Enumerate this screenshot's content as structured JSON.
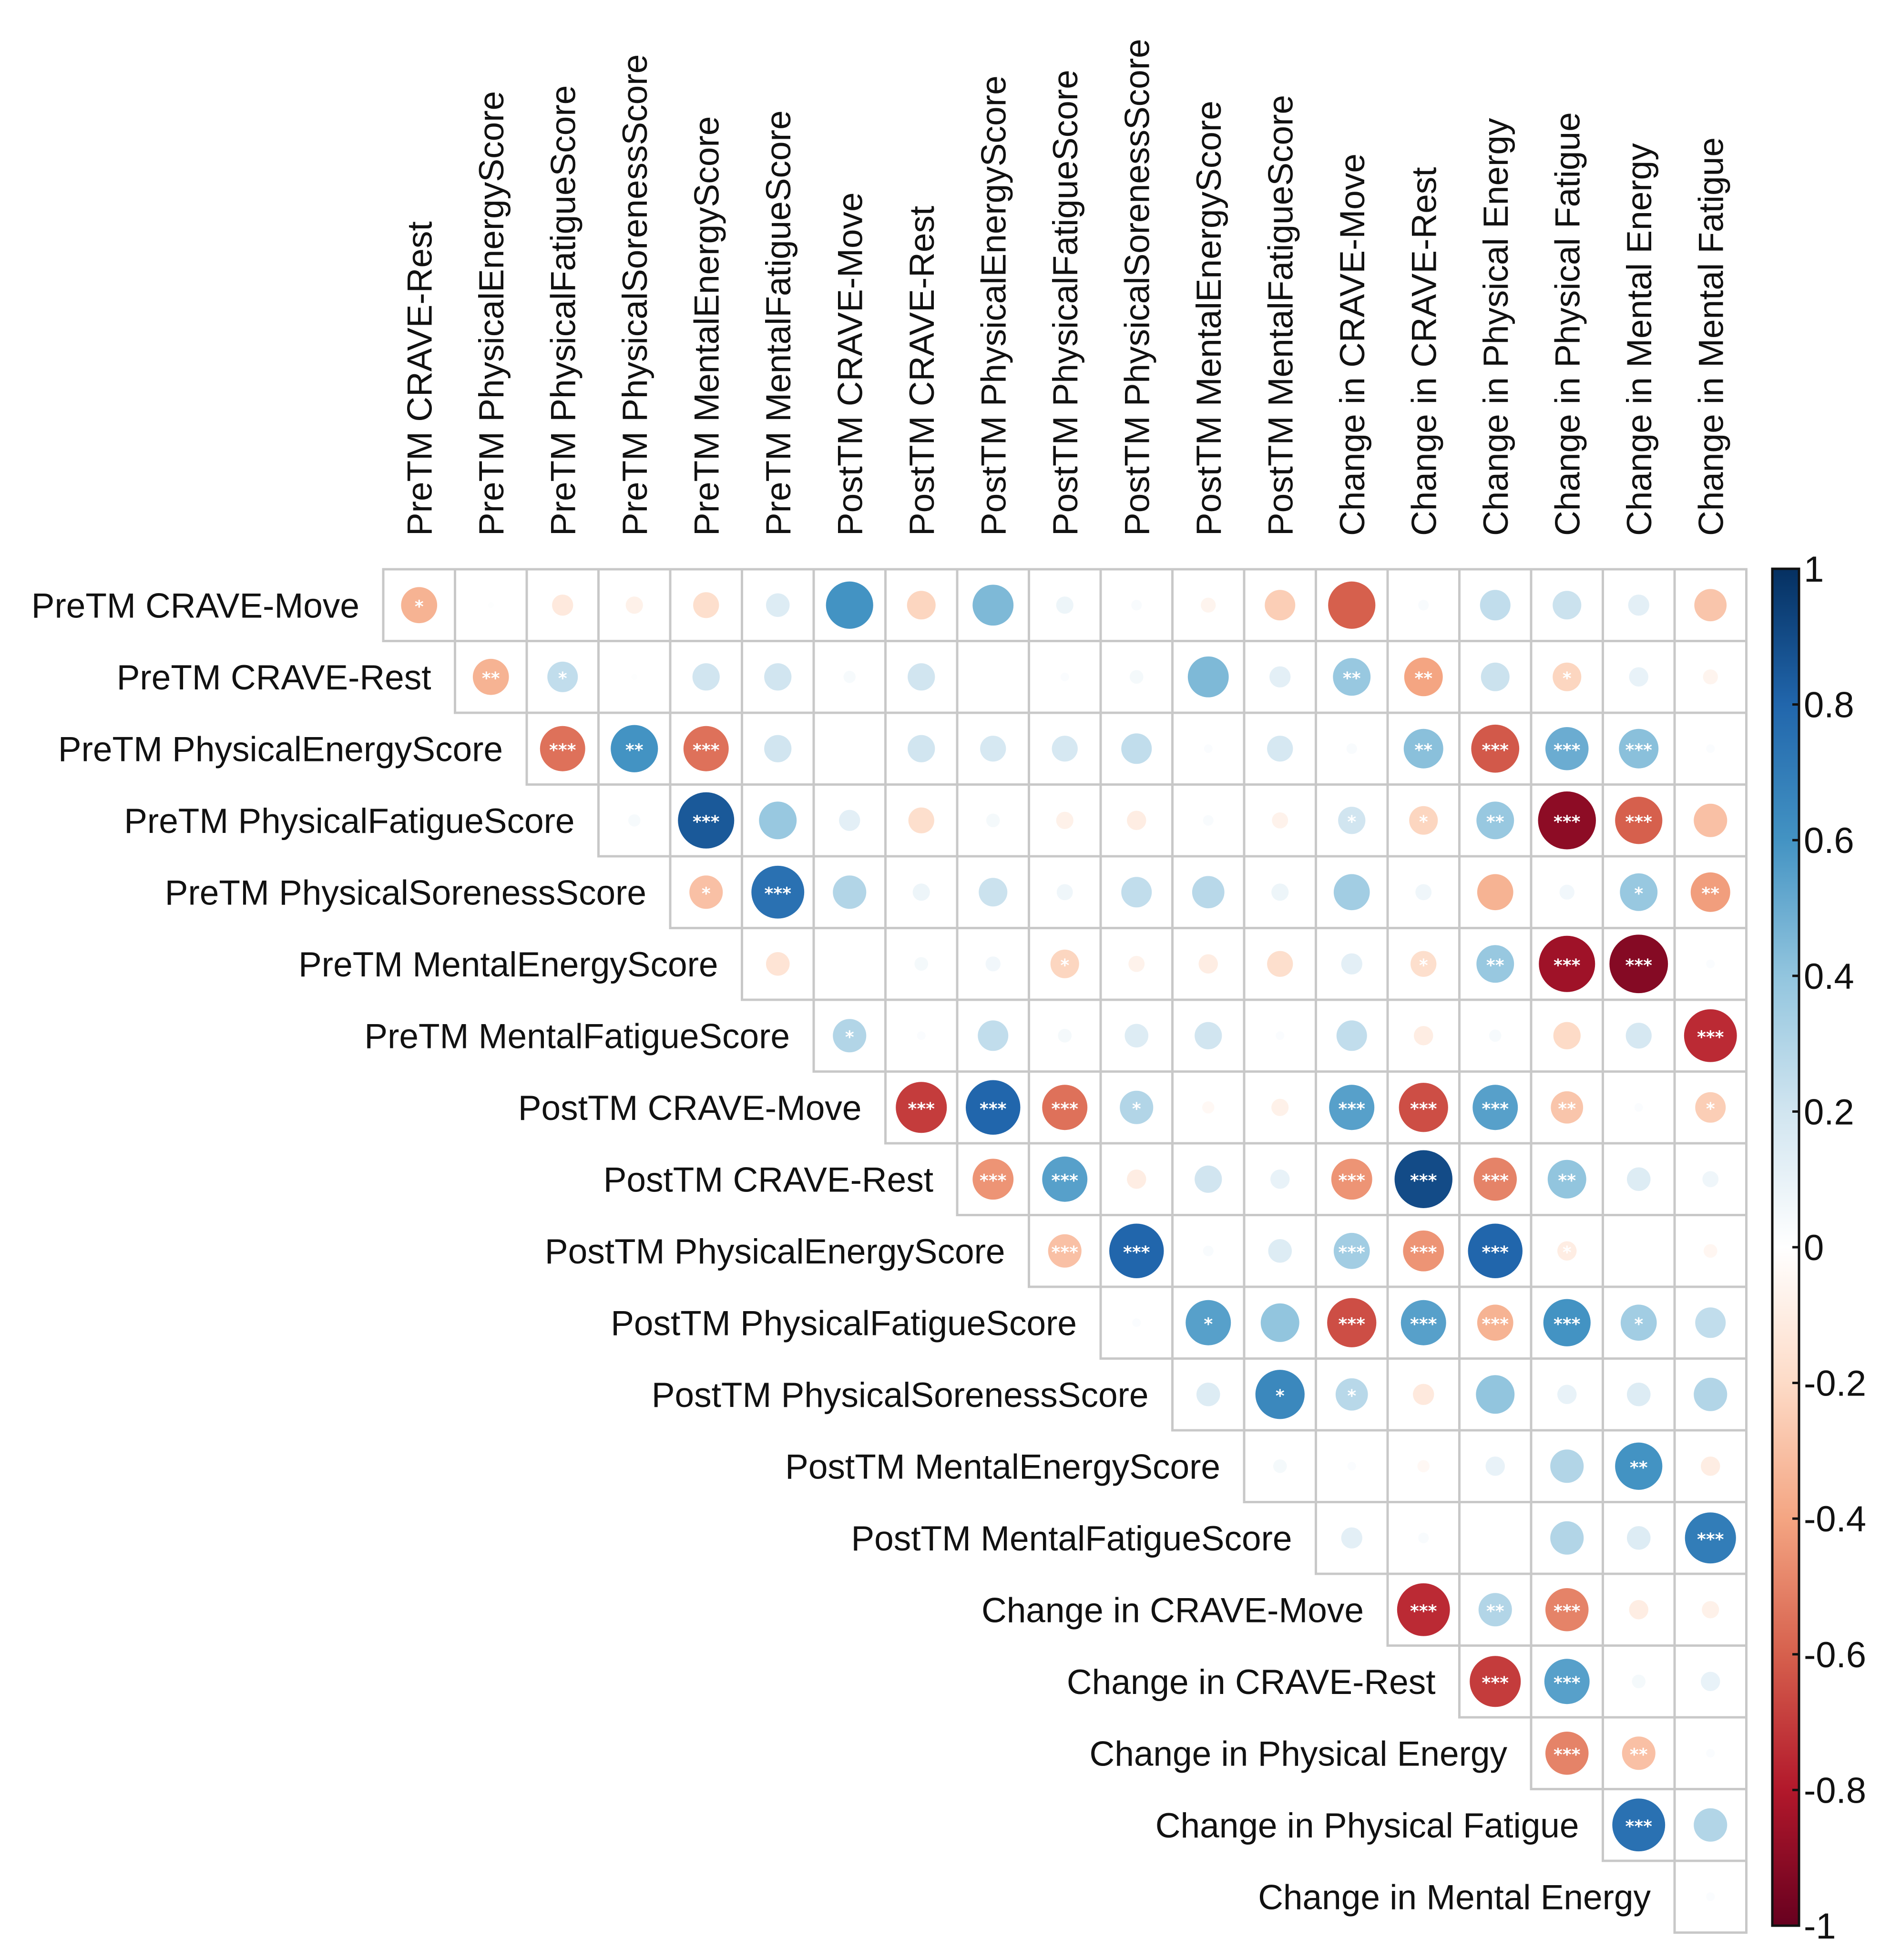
{
  "chart_data": {
    "type": "heatmap",
    "title": "",
    "variables": [
      "PreTM CRAVE-Move",
      "PreTM CRAVE-Rest",
      "PreTM PhysicalEnergyScore",
      "PreTM PhysicalFatigueScore",
      "PreTM PhysicalSorenessScore",
      "PreTM MentalEnergyScore",
      "PreTM MentalFatigueScore",
      "PostTM CRAVE-Move",
      "PostTM CRAVE-Rest",
      "PostTM PhysicalEnergyScore",
      "PostTM PhysicalFatigueScore",
      "PostTM PhysicalSorenessScore",
      "PostTM MentalEnergyScore",
      "PostTM MentalFatigueScore",
      "Change in CRAVE-Move",
      "Change in CRAVE-Rest",
      "Change in Physical Energy",
      "Change in Physical Fatigue",
      "Change in Mental Energy",
      "Change in Mental Fatigue"
    ],
    "row_labels": [
      "PreTM CRAVE-Move",
      "PreTM CRAVE-Rest",
      "PreTM PhysicalEnergyScore",
      "PreTM PhysicalFatigueScore",
      "PreTM PhysicalSorenessScore",
      "PreTM MentalEnergyScore",
      "PreTM MentalFatigueScore",
      "PostTM CRAVE-Move",
      "PostTM CRAVE-Rest",
      "PostTM PhysicalEnergyScore",
      "PostTM PhysicalFatigueScore",
      "PostTM PhysicalSorenessScore",
      "PostTM MentalEnergyScore",
      "PostTM MentalFatigueScore",
      "Change in CRAVE-Move",
      "Change in CRAVE-Rest",
      "Change in Physical Energy",
      "Change in Physical Fatigue",
      "Change in Mental Energy"
    ],
    "column_labels": [
      "PreTM CRAVE-Rest",
      "PreTM PhysicalEnergyScore",
      "PreTM PhysicalFatigueScore",
      "PreTM PhysicalSorenessScore",
      "PreTM MentalEnergyScore",
      "PreTM MentalFatigueScore",
      "PostTM CRAVE-Move",
      "PostTM CRAVE-Rest",
      "PostTM PhysicalEnergyScore",
      "PostTM PhysicalFatigueScore",
      "PostTM PhysicalSorenessScore",
      "PostTM MentalEnergyScore",
      "PostTM MentalFatigueScore",
      "Change in CRAVE-Move",
      "Change in CRAVE-Rest",
      "Change in Physical Energy",
      "Change in Physical Fatigue",
      "Change in Mental Energy",
      "Change in Mental Fatigue"
    ],
    "correlations": [
      [
        -0.35,
        0.01,
        -0.12,
        -0.08,
        -0.18,
        0.15,
        0.6,
        -0.22,
        0.45,
        0.08,
        0.03,
        -0.06,
        -0.25,
        -0.6,
        0.03,
        0.25,
        0.22,
        0.12,
        -0.28
      ],
      [
        null,
        -0.35,
        0.25,
        0.01,
        0.2,
        0.2,
        0.04,
        0.2,
        0.0,
        0.02,
        0.05,
        0.45,
        0.12,
        0.38,
        -0.4,
        0.22,
        -0.22,
        0.1,
        -0.06
      ],
      [
        null,
        null,
        -0.55,
        0.6,
        -0.55,
        0.2,
        0.0,
        0.2,
        0.18,
        0.18,
        0.25,
        0.02,
        0.18,
        0.03,
        0.42,
        -0.62,
        0.5,
        0.42,
        0.02
      ],
      [
        null,
        null,
        null,
        0.04,
        0.85,
        0.38,
        0.12,
        -0.18,
        0.05,
        -0.08,
        -0.1,
        0.03,
        -0.07,
        0.2,
        -0.22,
        0.38,
        -0.9,
        -0.6,
        -0.3
      ],
      [
        null,
        null,
        null,
        null,
        -0.3,
        0.75,
        0.3,
        0.08,
        0.22,
        0.07,
        0.25,
        0.28,
        0.08,
        0.35,
        0.07,
        -0.35,
        0.06,
        0.38,
        -0.42
      ],
      [
        null,
        null,
        null,
        null,
        null,
        -0.15,
        0.0,
        0.05,
        0.06,
        -0.22,
        -0.07,
        -0.1,
        -0.18,
        0.12,
        -0.18,
        0.38,
        -0.85,
        -0.92,
        0.02
      ],
      [
        null,
        null,
        null,
        null,
        null,
        null,
        0.3,
        0.02,
        0.25,
        0.05,
        0.15,
        0.2,
        0.02,
        0.25,
        -0.1,
        0.04,
        -0.2,
        0.18,
        -0.75
      ],
      [
        null,
        null,
        null,
        null,
        null,
        null,
        null,
        -0.7,
        0.8,
        -0.55,
        0.3,
        -0.04,
        -0.08,
        0.55,
        -0.65,
        0.55,
        -0.28,
        0.02,
        -0.25
      ],
      [
        null,
        null,
        null,
        null,
        null,
        null,
        null,
        null,
        -0.45,
        0.55,
        -0.1,
        0.2,
        0.1,
        -0.45,
        0.9,
        -0.5,
        0.4,
        0.15,
        0.07
      ],
      [
        null,
        null,
        null,
        null,
        null,
        null,
        null,
        null,
        null,
        -0.3,
        0.8,
        0.03,
        0.15,
        0.35,
        -0.45,
        0.8,
        -0.1,
        0.0,
        -0.05
      ],
      [
        null,
        null,
        null,
        null,
        null,
        null,
        null,
        null,
        null,
        null,
        0.02,
        0.55,
        0.4,
        -0.65,
        0.55,
        -0.35,
        0.6,
        0.35,
        0.25
      ],
      [
        null,
        null,
        null,
        null,
        null,
        null,
        null,
        null,
        null,
        null,
        null,
        0.15,
        0.65,
        0.28,
        -0.12,
        0.4,
        0.1,
        0.15,
        0.3
      ],
      [
        null,
        null,
        null,
        null,
        null,
        null,
        null,
        null,
        null,
        null,
        null,
        null,
        0.05,
        0.02,
        -0.04,
        0.1,
        0.3,
        0.6,
        -0.1
      ],
      [
        null,
        null,
        null,
        null,
        null,
        null,
        null,
        null,
        null,
        null,
        null,
        null,
        null,
        0.12,
        0.03,
        0.0,
        0.3,
        0.15,
        0.7
      ],
      [
        null,
        null,
        null,
        null,
        null,
        null,
        null,
        null,
        null,
        null,
        null,
        null,
        null,
        null,
        -0.75,
        0.3,
        -0.5,
        -0.1,
        -0.08
      ],
      [
        null,
        null,
        null,
        null,
        null,
        null,
        null,
        null,
        null,
        null,
        null,
        null,
        null,
        null,
        null,
        -0.7,
        0.55,
        0.05,
        0.1
      ],
      [
        null,
        null,
        null,
        null,
        null,
        null,
        null,
        null,
        null,
        null,
        null,
        null,
        null,
        null,
        null,
        null,
        -0.5,
        -0.3,
        0.02
      ],
      [
        null,
        null,
        null,
        null,
        null,
        null,
        null,
        null,
        null,
        null,
        null,
        null,
        null,
        null,
        null,
        null,
        null,
        0.75,
        0.3
      ],
      [
        null,
        null,
        null,
        null,
        null,
        null,
        null,
        null,
        null,
        null,
        null,
        null,
        null,
        null,
        null,
        null,
        null,
        null,
        0.02
      ]
    ],
    "significance": [
      [
        "*",
        "",
        "",
        "",
        "",
        "",
        "",
        "",
        "",
        "",
        "",
        "",
        "",
        "",
        "",
        "",
        "",
        "",
        ""
      ],
      [
        "",
        "**",
        "*",
        "",
        "",
        "",
        "",
        "",
        "",
        "",
        "",
        "",
        "",
        "**",
        "**",
        "",
        "*",
        "",
        ""
      ],
      [
        "",
        "",
        "***",
        "**",
        "***",
        "",
        "",
        "",
        "",
        "",
        "",
        "",
        "",
        "",
        "**",
        "***",
        "***",
        "***",
        ""
      ],
      [
        "",
        "",
        "",
        "",
        "***",
        "",
        "",
        "",
        "",
        "",
        "",
        "",
        "",
        "*",
        "*",
        "**",
        "***",
        "***",
        ""
      ],
      [
        "",
        "",
        "",
        "",
        "*",
        "***",
        "",
        "",
        "",
        "",
        "",
        "",
        "",
        "",
        "",
        "",
        "",
        "*",
        "**"
      ],
      [
        "",
        "",
        "",
        "",
        "",
        "",
        "",
        "",
        "",
        "*",
        "",
        "",
        "",
        "",
        "*",
        "**",
        "***",
        "***",
        ""
      ],
      [
        "",
        "",
        "",
        "",
        "",
        "",
        "*",
        "",
        "",
        "",
        "",
        "",
        "",
        "",
        "",
        "",
        "",
        "",
        "***"
      ],
      [
        "",
        "",
        "",
        "",
        "",
        "",
        "",
        "***",
        "***",
        "***",
        "*",
        "",
        "",
        "***",
        "***",
        "***",
        "**",
        "",
        "*"
      ],
      [
        "",
        "",
        "",
        "",
        "",
        "",
        "",
        "",
        "***",
        "***",
        "",
        "",
        "",
        "***",
        "***",
        "***",
        "**",
        "",
        ""
      ],
      [
        "",
        "",
        "",
        "",
        "",
        "",
        "",
        "",
        "",
        "***",
        "***",
        "",
        "",
        "***",
        "***",
        "***",
        "*",
        "",
        ""
      ],
      [
        "",
        "",
        "",
        "",
        "",
        "",
        "",
        "",
        "",
        "",
        "",
        "*",
        "",
        "***",
        "***",
        "***",
        "***",
        "*",
        ""
      ],
      [
        "",
        "",
        "",
        "",
        "",
        "",
        "",
        "",
        "",
        "",
        "",
        "",
        "*",
        "*",
        "",
        "",
        "",
        "",
        ""
      ],
      [
        "",
        "",
        "",
        "",
        "",
        "",
        "",
        "",
        "",
        "",
        "",
        "",
        "",
        "",
        "",
        "",
        "",
        "**",
        ""
      ],
      [
        "",
        "",
        "",
        "",
        "",
        "",
        "",
        "",
        "",
        "",
        "",
        "",
        "",
        "",
        "",
        "",
        "",
        "",
        "***"
      ],
      [
        "",
        "",
        "",
        "",
        "",
        "",
        "",
        "",
        "",
        "",
        "",
        "",
        "",
        "",
        "***",
        "**",
        "***",
        "",
        ""
      ],
      [
        "",
        "",
        "",
        "",
        "",
        "",
        "",
        "",
        "",
        "",
        "",
        "",
        "",
        "",
        "",
        "***",
        "***",
        "",
        ""
      ],
      [
        "",
        "",
        "",
        "",
        "",
        "",
        "",
        "",
        "",
        "",
        "",
        "",
        "",
        "",
        "",
        "",
        "***",
        "**",
        ""
      ],
      [
        "",
        "",
        "",
        "",
        "",
        "",
        "",
        "",
        "",
        "",
        "",
        "",
        "",
        "",
        "",
        "",
        "",
        "***",
        ""
      ],
      [
        "",
        "",
        "",
        "",
        "",
        "",
        "",
        "",
        "",
        "",
        "",
        "",
        "",
        "",
        "",
        "",
        "",
        "",
        ""
      ]
    ],
    "colorbar": {
      "range": [
        -1,
        1
      ],
      "ticks": [
        "1",
        "0.8",
        "0.6",
        "0.4",
        "0.2",
        "0",
        "-0.2",
        "-0.4",
        "-0.6",
        "-0.8",
        "-1"
      ],
      "colors": [
        "#67001F",
        "#B2182B",
        "#D6604D",
        "#F4A582",
        "#FDDBC7",
        "#FFFFFF",
        "#D1E5F0",
        "#92C5DE",
        "#4393C3",
        "#2166AC",
        "#053061"
      ]
    },
    "legend_position": "right"
  }
}
